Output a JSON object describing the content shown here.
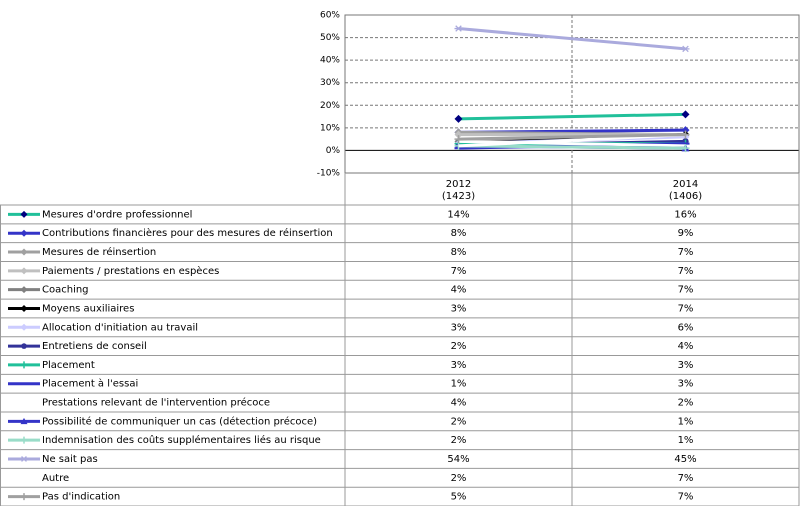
{
  "chart_data": {
    "type": "line",
    "categories": [
      "2012",
      "2014"
    ],
    "category_notes": [
      "(1423)",
      "(1406)"
    ],
    "ylim": [
      -10,
      60
    ],
    "yticks": [
      {
        "value": -10,
        "label": "-10%"
      },
      {
        "value": 0,
        "label": "0%"
      },
      {
        "value": 10,
        "label": "10%"
      },
      {
        "value": 20,
        "label": "20%"
      },
      {
        "value": 30,
        "label": "30%"
      },
      {
        "value": 40,
        "label": "40%"
      },
      {
        "value": 50,
        "label": "50%"
      },
      {
        "value": 60,
        "label": "60%"
      }
    ],
    "grid": true,
    "series": [
      {
        "name": "Mesures d'ordre professionnel",
        "color": "#20c09a",
        "marker_color": "#000080",
        "marker": "diamond",
        "values": [
          14,
          16
        ],
        "value_labels": [
          "14%",
          "16%"
        ]
      },
      {
        "name": "Contributions financières pour des mesures de réinsertion",
        "color": "#3434c8",
        "marker_color": "#3434c8",
        "marker": "diamond",
        "values": [
          8,
          9
        ],
        "value_labels": [
          "8%",
          "9%"
        ]
      },
      {
        "name": "Mesures de réinsertion",
        "color": "#a0a0a0",
        "marker_color": "#a0a0a0",
        "marker": "diamond",
        "values": [
          8,
          7
        ],
        "value_labels": [
          "8%",
          "7%"
        ]
      },
      {
        "name": "Paiements / prestations en espèces",
        "color": "#c0c0c0",
        "marker_color": "#c0c0c0",
        "marker": "diamond",
        "values": [
          7,
          7
        ],
        "value_labels": [
          "7%",
          "7%"
        ]
      },
      {
        "name": "Coaching",
        "color": "#808080",
        "marker_color": "#808080",
        "marker": "diamond",
        "values": [
          4,
          7
        ],
        "value_labels": [
          "4%",
          "7%"
        ]
      },
      {
        "name": "Moyens auxiliaires",
        "color": "#000000",
        "marker_color": "#000000",
        "marker": "diamond",
        "values": [
          3,
          7
        ],
        "value_labels": [
          "3%",
          "7%"
        ]
      },
      {
        "name": "Allocation d'initiation au travail",
        "color": "#ccccff",
        "marker_color": "#ccccff",
        "marker": "diamond",
        "values": [
          3,
          6
        ],
        "value_labels": [
          "3%",
          "6%"
        ]
      },
      {
        "name": "Entretiens de conseil",
        "color": "#333399",
        "marker_color": "#333399",
        "marker": "circle",
        "values": [
          2,
          4
        ],
        "value_labels": [
          "2%",
          "4%"
        ]
      },
      {
        "name": "Placement",
        "color": "#20c09a",
        "marker_color": "#20c09a",
        "marker": "plus",
        "values": [
          3,
          3
        ],
        "value_labels": [
          "3%",
          "3%"
        ]
      },
      {
        "name": "Placement à l'essai",
        "color": "#3434c8",
        "marker_color": "#3434c8",
        "marker": "dash",
        "values": [
          1,
          3
        ],
        "value_labels": [
          "1%",
          "3%"
        ]
      },
      {
        "name": "Prestations relevant de l'intervention précoce",
        "color": "#ffffff",
        "marker_color": "#ffffff",
        "marker": "none",
        "values": [
          4,
          2
        ],
        "value_labels": [
          "4%",
          "2%"
        ]
      },
      {
        "name": "Possibilité de communiquer un cas (détection précoce)",
        "color": "#3434c8",
        "marker_color": "#3434c8",
        "marker": "triangle",
        "values": [
          2,
          1
        ],
        "value_labels": [
          "2%",
          "1%"
        ]
      },
      {
        "name": "Indemnisation des coûts supplémentaires liés au risque",
        "color": "#99dcc8",
        "marker_color": "#99dcc8",
        "marker": "plus",
        "values": [
          2,
          1
        ],
        "value_labels": [
          "2%",
          "1%"
        ]
      },
      {
        "name": "Ne sait pas",
        "color": "#aaaadd",
        "marker_color": "#aaaadd",
        "marker": "star",
        "values": [
          54,
          45
        ],
        "value_labels": [
          "54%",
          "45%"
        ]
      },
      {
        "name": "Autre",
        "color": "#ffffff",
        "marker_color": "#ffffff",
        "marker": "none",
        "values": [
          2,
          7
        ],
        "value_labels": [
          "2%",
          "7%"
        ]
      },
      {
        "name": "Pas d'indication",
        "color": "#a0a0a0",
        "marker_color": "#a0a0a0",
        "marker": "plus",
        "values": [
          5,
          7
        ],
        "value_labels": [
          "5%",
          "7%"
        ]
      }
    ]
  }
}
